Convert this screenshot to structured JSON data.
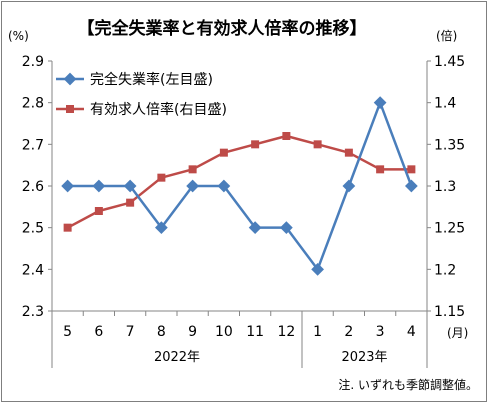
{
  "chart_data": {
    "type": "line",
    "title": "【完全失業率と有効求人倍率の推移】",
    "left_unit": "(%)",
    "right_unit": "(倍)",
    "month_unit": "(月)",
    "categories": [
      "5",
      "6",
      "7",
      "8",
      "9",
      "10",
      "11",
      "12",
      "1",
      "2",
      "3",
      "4"
    ],
    "years": [
      {
        "label": "2022年",
        "span": [
          0,
          7
        ]
      },
      {
        "label": "2023年",
        "span": [
          8,
          11
        ]
      }
    ],
    "y_left": {
      "ylim": [
        2.3,
        2.9
      ],
      "ticks": [
        "2.3",
        "2.4",
        "2.5",
        "2.6",
        "2.7",
        "2.8",
        "2.9"
      ]
    },
    "y_right": {
      "ylim": [
        1.15,
        1.45
      ],
      "ticks": [
        "1.15",
        "1.2",
        "1.25",
        "1.3",
        "1.35",
        "1.4",
        "1.45"
      ]
    },
    "series": [
      {
        "name": "完全失業率(左目盛)",
        "axis": "left",
        "color": "#4a7ebb",
        "marker": "diamond",
        "values": [
          2.6,
          2.6,
          2.6,
          2.5,
          2.6,
          2.6,
          2.5,
          2.5,
          2.4,
          2.6,
          2.8,
          2.6
        ]
      },
      {
        "name": "有効求人倍率(右目盛)",
        "axis": "right",
        "color": "#be4b48",
        "marker": "square",
        "values": [
          1.25,
          1.27,
          1.28,
          1.31,
          1.32,
          1.34,
          1.35,
          1.36,
          1.35,
          1.34,
          1.32,
          1.32
        ]
      }
    ],
    "note": "注. いずれも季節調整値。",
    "grid": false,
    "legend": "top-left"
  }
}
